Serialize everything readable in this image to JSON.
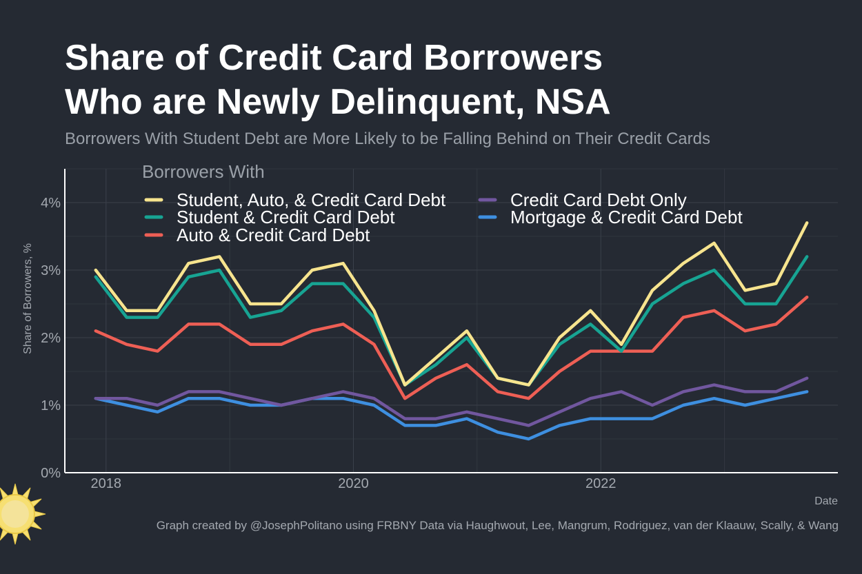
{
  "title_line1": "Share of Credit Card Borrowers",
  "title_line2": "Who are Newly Delinquent, NSA",
  "subtitle": "Borrowers With Student Debt are More Likely to be Falling Behind on Their Credit Cards",
  "caption": "Graph created by @JosephPolitano using FRBNY Data via Haughwout, Lee, Mangrum, Rodriguez, van der Klaauw, Scally, & Wang",
  "colors": {
    "background": "#252a33",
    "grid": "#3b404a",
    "axis": "#ffffff",
    "tick_text": "#a4a9b0",
    "title": "#ffffff",
    "subtitle": "#9aa0a8"
  },
  "logo_icon": "sun-icon",
  "chart_data": {
    "type": "line",
    "xlabel": "Date",
    "ylabel": "Share of Borrowers, %",
    "legend_title": "Borrowers With",
    "legend_position": "top-left",
    "grid": true,
    "xlim": [
      "2017-09",
      "2023-12"
    ],
    "ylim": [
      0,
      4.5
    ],
    "x_ticks": [
      {
        "date": "2018-01",
        "label": "2018"
      },
      {
        "date": "2020-01",
        "label": "2020"
      },
      {
        "date": "2022-01",
        "label": "2022"
      }
    ],
    "y_ticks": [
      {
        "value": 0,
        "label": "0%"
      },
      {
        "value": 1,
        "label": "1%"
      },
      {
        "value": 2,
        "label": "2%"
      },
      {
        "value": 3,
        "label": "3%"
      },
      {
        "value": 4,
        "label": "4%"
      }
    ],
    "x": [
      "2017-12",
      "2018-03",
      "2018-06",
      "2018-09",
      "2018-12",
      "2019-03",
      "2019-06",
      "2019-09",
      "2019-12",
      "2020-03",
      "2020-06",
      "2020-09",
      "2020-12",
      "2021-03",
      "2021-06",
      "2021-09",
      "2021-12",
      "2022-03",
      "2022-06",
      "2022-09",
      "2022-12",
      "2023-03",
      "2023-06",
      "2023-09"
    ],
    "series": [
      {
        "name": "Student, Auto, & Credit Card Debt",
        "color": "#f7e48e",
        "values": [
          3.0,
          2.4,
          2.4,
          3.1,
          3.2,
          2.5,
          2.5,
          3.0,
          3.1,
          2.4,
          1.3,
          1.7,
          2.1,
          1.4,
          1.3,
          2.0,
          2.4,
          1.9,
          2.7,
          3.1,
          3.4,
          2.7,
          2.8,
          3.7
        ]
      },
      {
        "name": "Student & Credit Card Debt",
        "color": "#17a493",
        "values": [
          2.9,
          2.3,
          2.3,
          2.9,
          3.0,
          2.3,
          2.4,
          2.8,
          2.8,
          2.3,
          1.3,
          1.6,
          2.0,
          1.4,
          1.3,
          1.9,
          2.2,
          1.8,
          2.5,
          2.8,
          3.0,
          2.5,
          2.5,
          3.2
        ]
      },
      {
        "name": "Auto & Credit Card Debt",
        "color": "#ee5f55",
        "values": [
          2.1,
          1.9,
          1.8,
          2.2,
          2.2,
          1.9,
          1.9,
          2.1,
          2.2,
          1.9,
          1.1,
          1.4,
          1.6,
          1.2,
          1.1,
          1.5,
          1.8,
          1.8,
          1.8,
          2.3,
          2.4,
          2.1,
          2.2,
          2.6
        ]
      },
      {
        "name": "Credit Card Debt Only",
        "color": "#71579f",
        "values": [
          1.1,
          1.1,
          1.0,
          1.2,
          1.2,
          1.1,
          1.0,
          1.1,
          1.2,
          1.1,
          0.8,
          0.8,
          0.9,
          0.8,
          0.7,
          0.9,
          1.1,
          1.2,
          1.0,
          1.2,
          1.3,
          1.2,
          1.2,
          1.4
        ]
      },
      {
        "name": "Mortgage & Credit Card Debt",
        "color": "#3e8fe0",
        "values": [
          1.1,
          1.0,
          0.9,
          1.1,
          1.1,
          1.0,
          1.0,
          1.1,
          1.1,
          1.0,
          0.7,
          0.7,
          0.8,
          0.6,
          0.5,
          0.7,
          0.8,
          0.8,
          0.8,
          1.0,
          1.1,
          1.0,
          1.1,
          1.2
        ]
      }
    ]
  }
}
